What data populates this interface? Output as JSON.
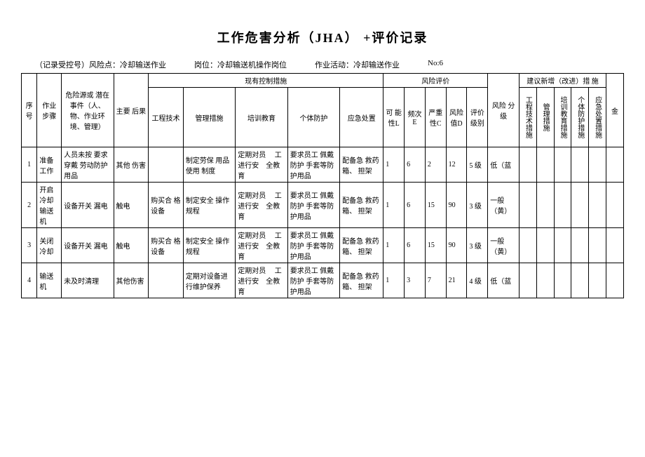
{
  "title": "工作危害分析（JHA）  +评价记录",
  "meta": {
    "record": "（记录受控号）风险点：冷却输送作业",
    "post": "岗位：冷却输送机操作岗位",
    "activity": "作业活动：冷却输送作业",
    "no": "No:6"
  },
  "headers": {
    "seq": "序号",
    "step": "作业步骤",
    "hazard": "危险源或  潜在事件（人、物、作业环境、管理）",
    "consequence": "主要  后果",
    "existing": "现有控制措施",
    "eng": "工程技术",
    "mgmt": "管理措施",
    "training": "培训教育",
    "ppe": "个体防护",
    "emergency": "应急处置",
    "risk_eval": "风险评价",
    "L": "可  能性L",
    "E": "频次E",
    "C": "严重性C",
    "D": "风险值D",
    "level": "评价级别",
    "grade": "风险  分级",
    "suggest": "建议新增（改进）措  施",
    "s_eng": "工程技术措施",
    "s_mgmt": "管理措施",
    "s_train": "培训教育措施",
    "s_ppe": "个体防护措施",
    "s_emerg": "应急处置措施",
    "money": "金"
  },
  "rows": [
    {
      "seq": "1",
      "step": "准备工作",
      "hazard": "人员未按  要求穿戴  劳动防护  用品",
      "consequence": "其他  伤害",
      "eng": "",
      "mgmt": "制定劳保  用品使用  制度",
      "training": "定期对员　 工进行安　全教育",
      "ppe": "要求员工  佩戴防护  手套等防  护用品",
      "emergency": "配备急  救药箱、  担架",
      "L": "1",
      "E": "6",
      "C": "2",
      "D": "12",
      "level": "5 级",
      "grade": "低（蓝"
    },
    {
      "seq": "2",
      "step": "开启冷却输送机",
      "hazard": "设备开关  漏电",
      "consequence": "触电",
      "eng": "购买合  格设备",
      "mgmt": "制定安全  操作规程",
      "training": "定期对员　 工进行安　全教育",
      "ppe": "要求员工  佩戴防护  手套等防  护用品",
      "emergency": "配备急  救药箱、  担架",
      "L": "1",
      "E": "6",
      "C": "15",
      "D": "90",
      "level": "3 级",
      "grade": "一般（黄）"
    },
    {
      "seq": "3",
      "step": "关闭冷却",
      "hazard": "设备开关  漏电",
      "consequence": "触电",
      "eng": "购买合  格设备",
      "mgmt": "制定安全  操作规程",
      "training": "定期对员　 工进行安　全教育",
      "ppe": "要求员工  佩戴防护  手套等防  护用品",
      "emergency": "配备急  救药箱、  担架",
      "L": "1",
      "E": "6",
      "C": "15",
      "D": "90",
      "level": "3 级",
      "grade": "一般（黄）"
    },
    {
      "seq": "4",
      "step": "输送机",
      "hazard": "未及时清理",
      "consequence": "其他伤害",
      "eng": "",
      "mgmt": "定期对设备进行维护保养",
      "training": "定期对员　 工进行安　全教育",
      "ppe": "要求员工  佩戴防护  手套等防  护用品",
      "emergency": "配备急  救药箱、  担架",
      "L": "1",
      "E": "3",
      "C": "7",
      "D": "21",
      "level": "4 级",
      "grade": "低（蓝"
    }
  ]
}
